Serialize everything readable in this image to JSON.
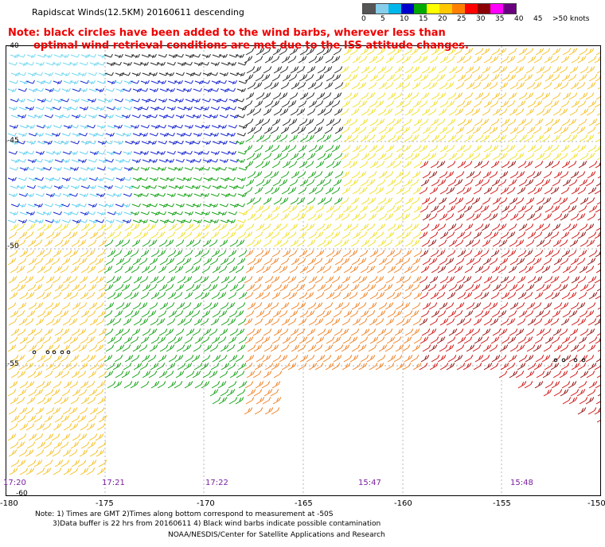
{
  "title": "Rapidscat Winds(12.5KM) 20160611 descending",
  "note_line1": "Note: black circles have been added to the wind barbs, wherever less than",
  "note_line2": "optimal wind retrieval conditions are met due to the ISS attitude changes.",
  "colorbar": {
    "labels": [
      "0",
      "5",
      "10",
      "15",
      "20",
      "25",
      "30",
      "35",
      "40",
      "45",
      ">50 knots"
    ],
    "colors": [
      "#555555",
      "#87ceeb",
      "#00b7eb",
      "#0000cc",
      "#00aa00",
      "#ffff00",
      "#ffc800",
      "#ff8000",
      "#ff0000",
      "#8b0000",
      "#ff00ff",
      "#6a0080"
    ]
  },
  "y_ticks": [
    "-40",
    "-45",
    "-50",
    "-55",
    "-60"
  ],
  "x_ticks": [
    "-180",
    "-175",
    "-170",
    "-165",
    "-160",
    "-155",
    "-150"
  ],
  "times": [
    "17:20",
    "17:21",
    "17:22",
    "15:47",
    "15:48"
  ],
  "footer": {
    "line1": "Note: 1) Times are GMT 2)Times along bottom correspond to measurement at -50S",
    "line2": "3)Data buffer is 22 hrs from 20160611 4) Black wind barbs indicate possible contamination",
    "line3": "NOAA/NESDIS/Center for Satellite Applications and Research"
  }
}
